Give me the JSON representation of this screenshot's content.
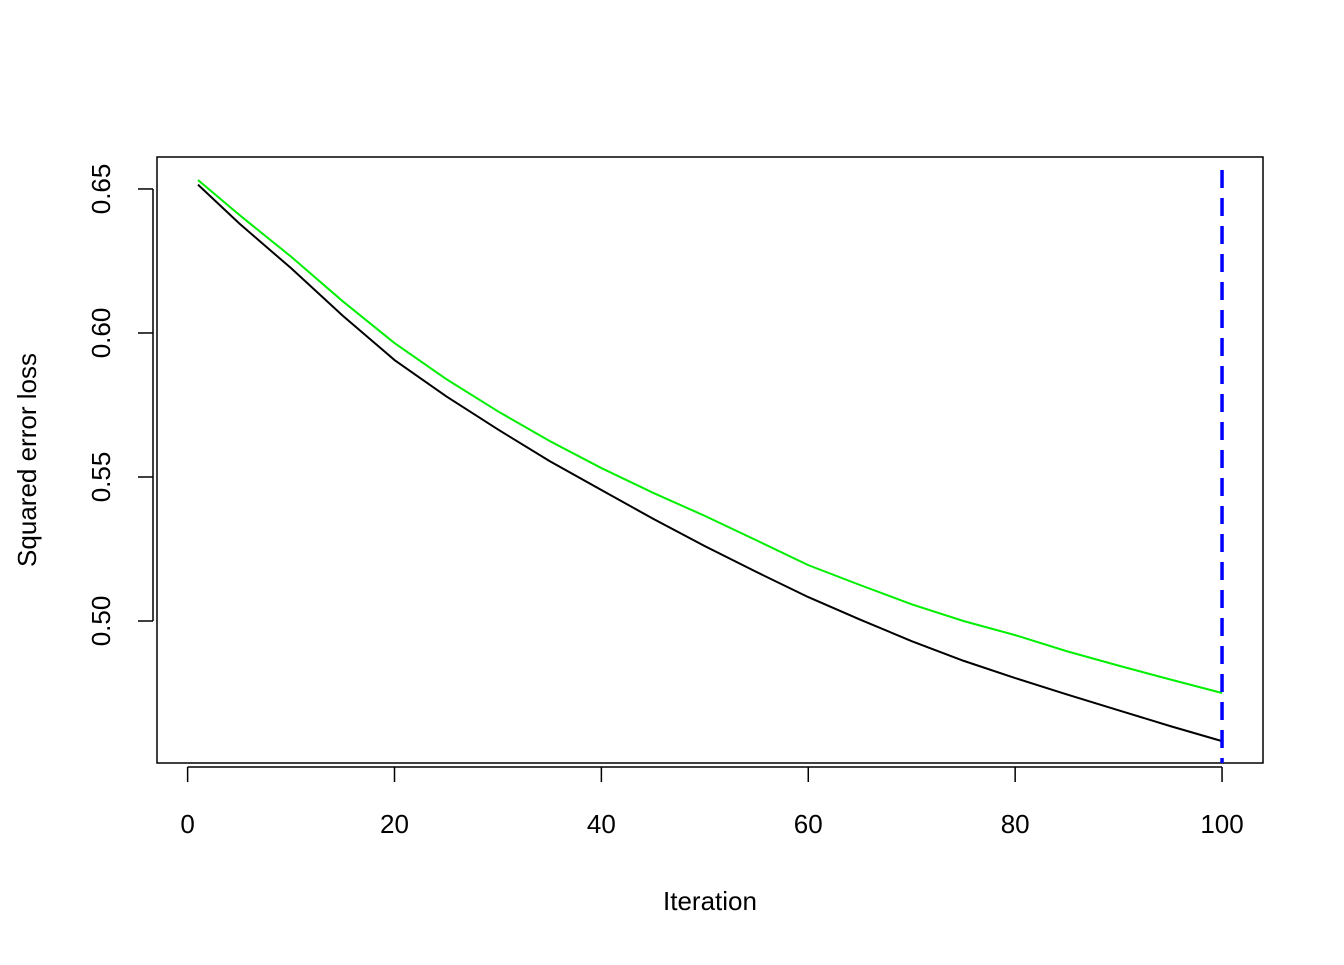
{
  "chart_data": {
    "type": "line",
    "xlabel": "Iteration",
    "ylabel": "Squared error loss",
    "x": [
      1,
      5,
      10,
      15,
      20,
      25,
      30,
      35,
      40,
      45,
      50,
      55,
      60,
      65,
      70,
      75,
      80,
      85,
      90,
      95,
      100
    ],
    "series": [
      {
        "color": "#000000",
        "values": [
          0.6515,
          0.638,
          0.6225,
          0.606,
          0.5906,
          0.578,
          0.5665,
          0.5555,
          0.5455,
          0.5355,
          0.526,
          0.517,
          0.5083,
          0.5005,
          0.493,
          0.4862,
          0.4802,
          0.4745,
          0.469,
          0.4635,
          0.4583
        ]
      },
      {
        "color": "#00ee00",
        "values": [
          0.6531,
          0.641,
          0.6265,
          0.611,
          0.5965,
          0.584,
          0.5728,
          0.5625,
          0.5531,
          0.5445,
          0.5365,
          0.528,
          0.5194,
          0.5125,
          0.5058,
          0.5,
          0.4951,
          0.4895,
          0.4845,
          0.4797,
          0.475
        ]
      }
    ],
    "vline": {
      "x": 100,
      "color": "#0000ff"
    },
    "xlim": [
      -2.96,
      103.96
    ],
    "ylim": [
      0.4507,
      0.6611
    ],
    "xticks": [
      0,
      20,
      40,
      60,
      80,
      100
    ],
    "yticks": [
      {
        "value": 0.5,
        "label": "0.50"
      },
      0.55,
      {
        "value": 0.6,
        "label": "0.60"
      },
      0.65
    ]
  }
}
